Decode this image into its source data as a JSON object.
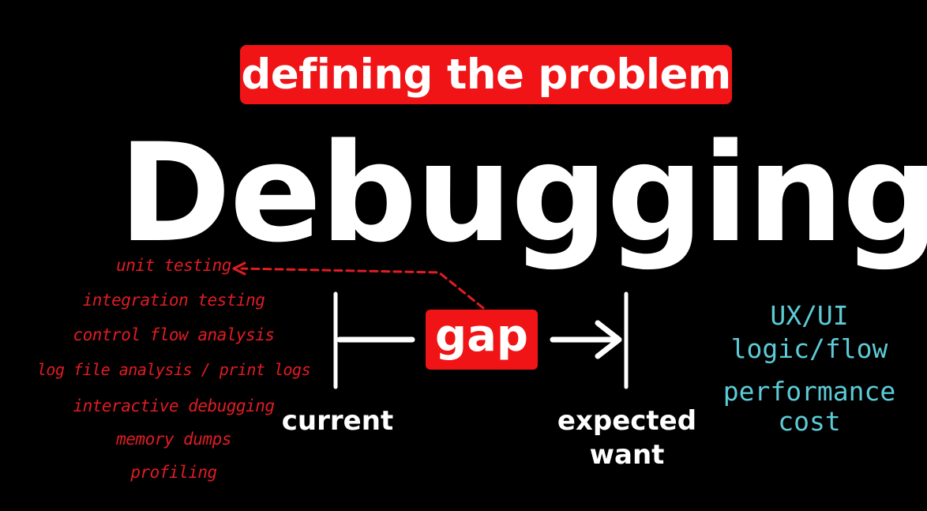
{
  "banner": {
    "text": "defining the problem",
    "color": "#f01416"
  },
  "title": "Debugging",
  "gap": {
    "label": "gap"
  },
  "endpoints": {
    "current": "current",
    "expected": "expected",
    "want": "want"
  },
  "methods": [
    "unit testing",
    "integration testing",
    "control flow analysis",
    "log file analysis / print logs",
    "interactive debugging",
    "memory dumps",
    "profiling"
  ],
  "categories": [
    "UX/UI",
    "logic/flow",
    "performance",
    "cost"
  ],
  "colors": {
    "background": "#000000",
    "accent": "#f01416",
    "methods": "#e11c22",
    "categories": "#5dcbd6",
    "text": "#ffffff"
  }
}
